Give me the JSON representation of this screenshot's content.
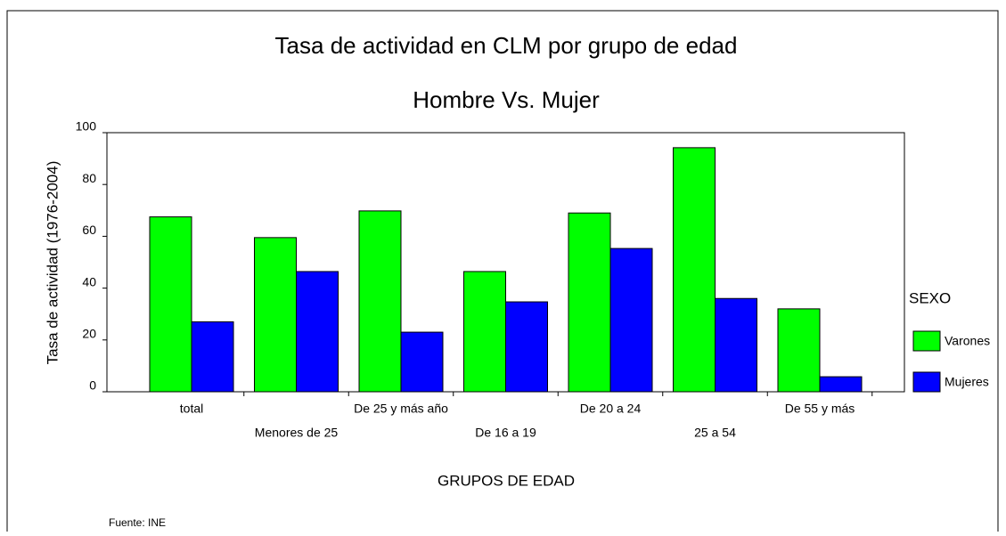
{
  "chart_data": {
    "type": "bar",
    "title": "Tasa de actividad en CLM por grupo de edad",
    "subtitle": "Hombre Vs. Mujer",
    "y_label": "Tasa de actividad (1976-2004)",
    "x_label": "GRUPOS DE EDAD",
    "legend_title": "SEXO",
    "source": "Fuente: INE",
    "categories": [
      "total",
      "Menores de 25",
      "De 25 y más año",
      "De 16 a 19",
      "De 20 a 24",
      "25 a 54",
      "De 55 y más"
    ],
    "series": [
      {
        "name": "Varones",
        "color": "#00ff00",
        "values": [
          67.5,
          59.5,
          69.8,
          46.4,
          69,
          94.2,
          32
        ]
      },
      {
        "name": "Mujeres",
        "color": "#0000ff",
        "values": [
          27,
          46.4,
          23,
          34.7,
          55.3,
          36,
          5.8
        ]
      }
    ],
    "ylim": [
      0,
      100
    ],
    "yticks": [
      0,
      20,
      40,
      60,
      80,
      100
    ],
    "legend": "right"
  }
}
